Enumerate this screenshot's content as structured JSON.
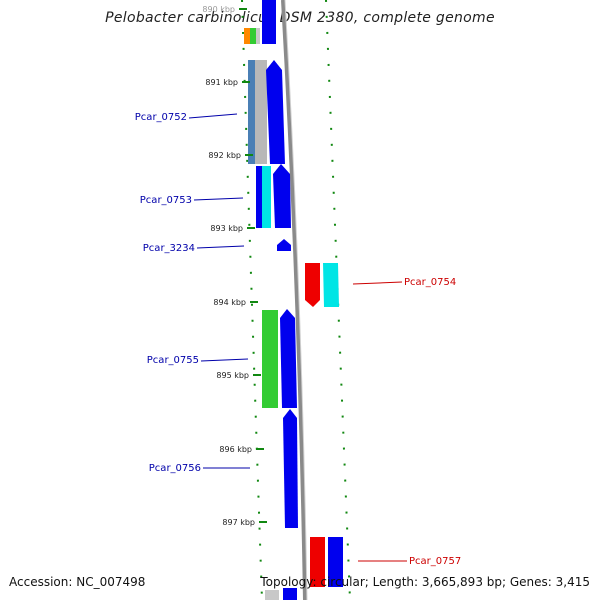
{
  "title": "Pelobacter carbinolicus DSM 2380, complete genome",
  "footer": {
    "accession": "Accession: NC_007498",
    "summary": "Topology: circular; Length: 3,665,893 bp; Genes: 3,415"
  },
  "ticks": [
    {
      "label": "890 kbp"
    },
    {
      "label": "891 kbp"
    },
    {
      "label": "892 kbp"
    },
    {
      "label": "893 kbp"
    },
    {
      "label": "894 kbp"
    },
    {
      "label": "895 kbp"
    },
    {
      "label": "896 kbp"
    },
    {
      "label": "897 kbp"
    }
  ],
  "gene_labels": [
    {
      "name": "Pcar_0752",
      "strand": "reverse"
    },
    {
      "name": "Pcar_0753",
      "strand": "reverse"
    },
    {
      "name": "Pcar_3234",
      "strand": "reverse"
    },
    {
      "name": "Pcar_0754",
      "strand": "forward"
    },
    {
      "name": "Pcar_0755",
      "strand": "reverse"
    },
    {
      "name": "Pcar_0756",
      "strand": "reverse"
    },
    {
      "name": "Pcar_0757",
      "strand": "forward"
    }
  ],
  "colors": {
    "reverse_label": "#0000aa",
    "forward_label": "#cc0000",
    "gene_blue": "#0000ee",
    "gene_red": "#ee0000",
    "gene_cyan": "#00e5e5",
    "gene_green": "#33cc33",
    "gene_orange": "#ff8800",
    "gene_gray": "#c8c8c8",
    "backbone": "#8a8a8a",
    "tick_green": "#118811"
  }
}
